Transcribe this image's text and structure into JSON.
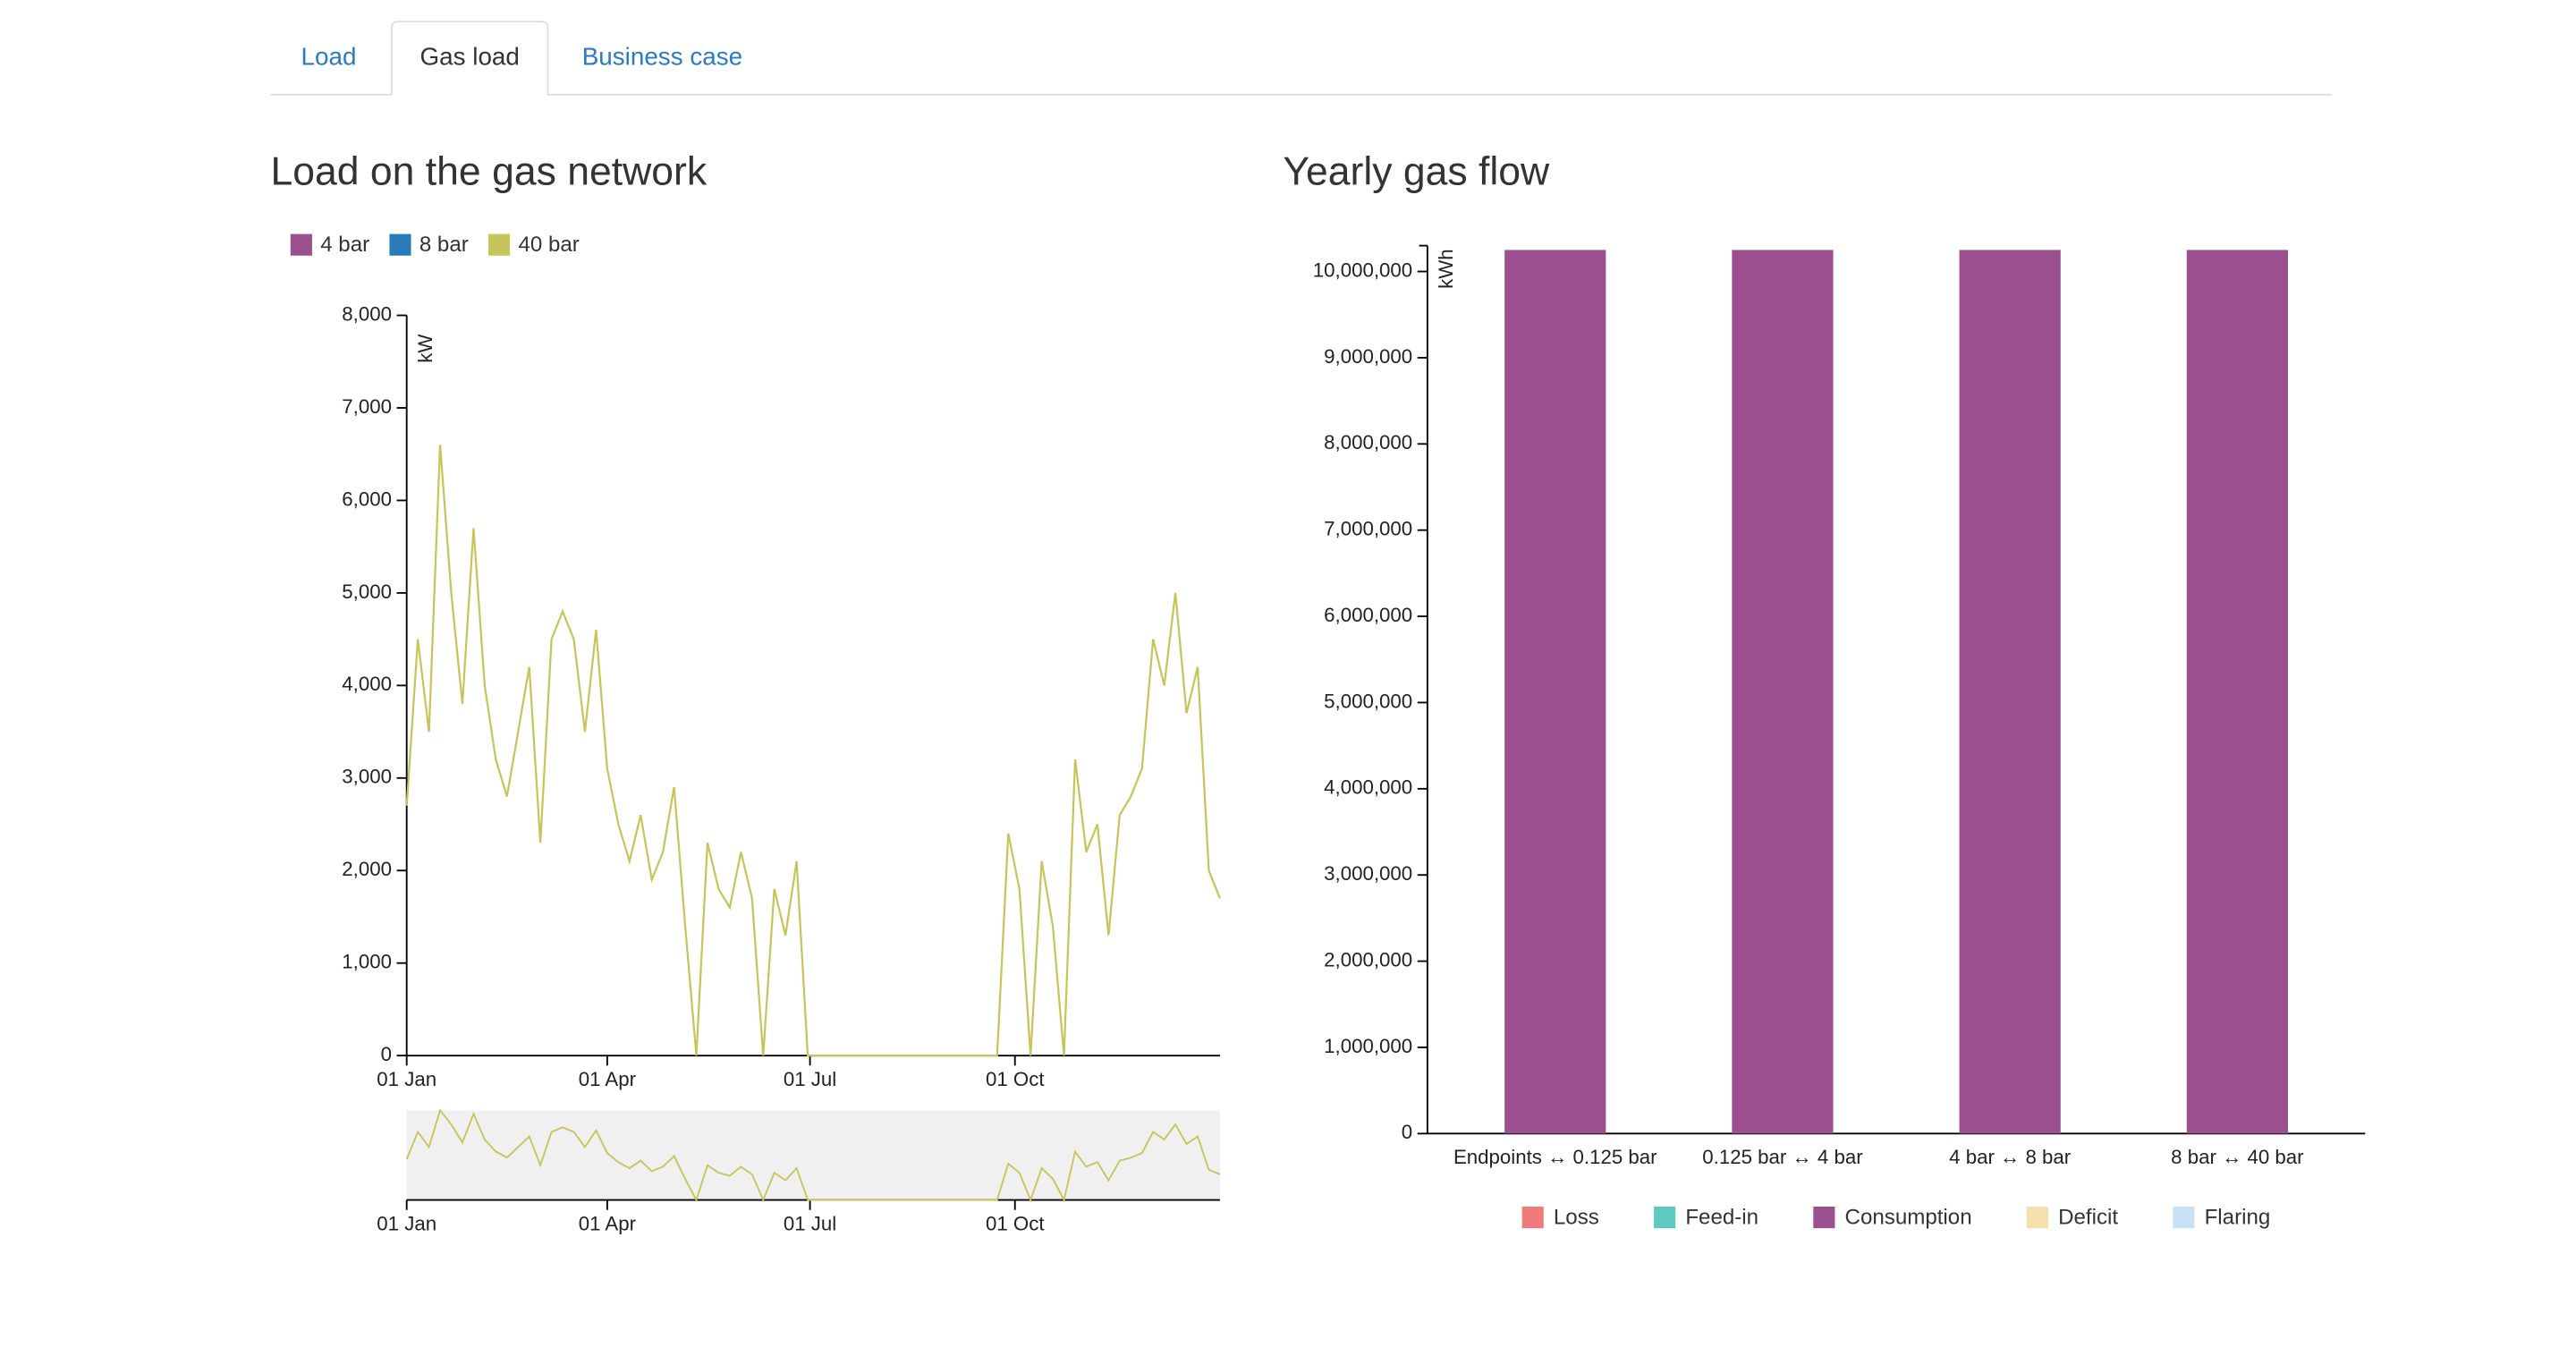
{
  "tabs": [
    "Load",
    "Gas load",
    "Business case"
  ],
  "chart_data": [
    {
      "type": "line",
      "title": "Load on the gas network",
      "y_label": "kW",
      "x": [
        0,
        5,
        10,
        15,
        20,
        25,
        30,
        35,
        40,
        45,
        50,
        55,
        60,
        65,
        70,
        75,
        80,
        85,
        90,
        95,
        100,
        105,
        110,
        115,
        120,
        125,
        130,
        135,
        140,
        145,
        150,
        155,
        160,
        165,
        170,
        175,
        180,
        185,
        190,
        195,
        200,
        205,
        210,
        215,
        220,
        225,
        230,
        235,
        240,
        245,
        250,
        255,
        260,
        265,
        270,
        275,
        280,
        285,
        290,
        295,
        300,
        305,
        310,
        315,
        320,
        325,
        330,
        335,
        340,
        345,
        350,
        355,
        360,
        365
      ],
      "xlim": [
        0,
        365
      ],
      "xticks": [
        {
          "value": 0,
          "label": "01 Jan"
        },
        {
          "value": 90,
          "label": "01 Apr"
        },
        {
          "value": 181,
          "label": "01 Jul"
        },
        {
          "value": 273,
          "label": "01 Oct"
        }
      ],
      "ylim": [
        0,
        8000
      ],
      "yticks": [
        0,
        {
          "value": 1000,
          "label": "1,000"
        },
        {
          "value": 2000,
          "label": "2,000"
        },
        {
          "value": 3000,
          "label": "3,000"
        },
        {
          "value": 4000,
          "label": "4,000"
        },
        {
          "value": 5000,
          "label": "5,000"
        },
        {
          "value": 6000,
          "label": "6,000"
        },
        {
          "value": 7000,
          "label": "7,000"
        },
        {
          "value": 8000,
          "label": "8,000"
        }
      ],
      "series": [
        {
          "name": "4 bar",
          "color": "#9b4f8f",
          "values": [
            null,
            null,
            null,
            null,
            null,
            null,
            null,
            null,
            null,
            null,
            null,
            null,
            null,
            null,
            null,
            null,
            null,
            null,
            null,
            null,
            null,
            null,
            null,
            null,
            null,
            null,
            null,
            null,
            null,
            null,
            null,
            null,
            null,
            null,
            null,
            null,
            null,
            null,
            null,
            null,
            null,
            null,
            null,
            null,
            null,
            null,
            null,
            null,
            null,
            null,
            null,
            null,
            null,
            null,
            null,
            null,
            null,
            null,
            null,
            null,
            null,
            null,
            null,
            null,
            null,
            null,
            null,
            null,
            null,
            null,
            null,
            null,
            null,
            null
          ]
        },
        {
          "name": "8 bar",
          "color": "#2b7bba",
          "values": [
            null,
            null,
            null,
            null,
            null,
            null,
            null,
            null,
            null,
            null,
            null,
            null,
            null,
            null,
            null,
            null,
            null,
            null,
            null,
            null,
            null,
            null,
            null,
            null,
            null,
            null,
            null,
            null,
            null,
            null,
            null,
            null,
            null,
            null,
            null,
            null,
            null,
            null,
            null,
            null,
            null,
            null,
            null,
            null,
            null,
            null,
            null,
            null,
            null,
            null,
            null,
            null,
            null,
            null,
            null,
            null,
            null,
            null,
            null,
            null,
            null,
            null,
            null,
            null,
            null,
            null,
            null,
            null,
            null,
            null,
            null,
            null,
            null,
            null
          ]
        },
        {
          "name": "40 bar",
          "color": "#c8c45a",
          "values": [
            2700,
            4500,
            3500,
            6600,
            5000,
            3800,
            5700,
            4000,
            3200,
            2800,
            3500,
            4200,
            2300,
            4500,
            4800,
            4500,
            3500,
            4600,
            3100,
            2500,
            2100,
            2600,
            1900,
            2200,
            2900,
            1400,
            0,
            2300,
            1800,
            1600,
            2200,
            1700,
            0,
            1800,
            1300,
            2100,
            0,
            0,
            0,
            0,
            0,
            0,
            0,
            0,
            0,
            0,
            0,
            0,
            0,
            0,
            0,
            0,
            0,
            0,
            2400,
            1800,
            0,
            2100,
            1400,
            0,
            3200,
            2200,
            2500,
            1300,
            2600,
            2800,
            3100,
            4500,
            4000,
            5000,
            3700,
            4200,
            2000,
            1700
          ]
        }
      ]
    },
    {
      "type": "bar",
      "stacked": true,
      "title": "Yearly gas flow",
      "y_label": "kWh",
      "categories": [
        "Endpoints ↔ 0.125 bar",
        "0.125 bar ↔ 4 bar",
        "4 bar ↔ 8 bar",
        "8 bar ↔ 40 bar"
      ],
      "ylim": [
        0,
        10300000
      ],
      "yticks": [
        0,
        {
          "value": 1000000,
          "label": "1,000,000"
        },
        {
          "value": 2000000,
          "label": "2,000,000"
        },
        {
          "value": 3000000,
          "label": "3,000,000"
        },
        {
          "value": 4000000,
          "label": "4,000,000"
        },
        {
          "value": 5000000,
          "label": "5,000,000"
        },
        {
          "value": 6000000,
          "label": "6,000,000"
        },
        {
          "value": 7000000,
          "label": "7,000,000"
        },
        {
          "value": 8000000,
          "label": "8,000,000"
        },
        {
          "value": 9000000,
          "label": "9,000,000"
        },
        {
          "value": 10000000,
          "label": "10,000,000"
        }
      ],
      "series": [
        {
          "name": "Loss",
          "color": "#ef7b7b",
          "values": [
            0,
            0,
            0,
            0
          ]
        },
        {
          "name": "Feed-in",
          "color": "#5ccabf",
          "values": [
            0,
            0,
            0,
            0
          ]
        },
        {
          "name": "Consumption",
          "color": "#9b4f8f",
          "values": [
            10250000,
            10250000,
            10250000,
            10250000
          ]
        },
        {
          "name": "Deficit",
          "color": "#f3e0ad",
          "values": [
            0,
            0,
            0,
            0
          ]
        },
        {
          "name": "Flaring",
          "color": "#c9e1f5",
          "values": [
            0,
            0,
            0,
            0
          ]
        }
      ]
    }
  ]
}
